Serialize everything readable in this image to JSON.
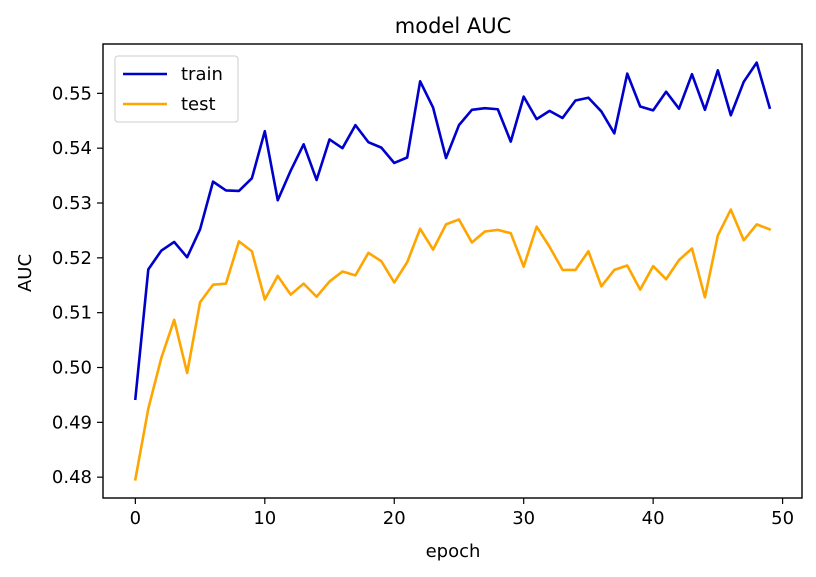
{
  "chart_data": {
    "type": "line",
    "title": "model AUC",
    "xlabel": "epoch",
    "ylabel": "AUC",
    "xlim": [
      -2.5,
      51.5
    ],
    "ylim": [
      0.4762,
      0.559
    ],
    "xticks": [
      0,
      10,
      20,
      30,
      40,
      50
    ],
    "yticks": [
      0.48,
      0.49,
      0.5,
      0.51,
      0.52,
      0.53,
      0.54,
      0.55
    ],
    "ytick_labels": [
      "0.48",
      "0.49",
      "0.50",
      "0.51",
      "0.52",
      "0.53",
      "0.54",
      "0.55"
    ],
    "grid": false,
    "legend_position": "upper-left",
    "x": [
      0,
      1,
      2,
      3,
      4,
      5,
      6,
      7,
      8,
      9,
      10,
      11,
      12,
      13,
      14,
      15,
      16,
      17,
      18,
      19,
      20,
      21,
      22,
      23,
      24,
      25,
      26,
      27,
      28,
      29,
      30,
      31,
      32,
      33,
      34,
      35,
      36,
      37,
      38,
      39,
      40,
      41,
      42,
      43,
      44,
      45,
      46,
      47,
      48,
      49
    ],
    "series": [
      {
        "name": "train",
        "color": "#0000cc",
        "values": [
          0.4943,
          0.5179,
          0.5213,
          0.5229,
          0.5201,
          0.5252,
          0.5339,
          0.5323,
          0.5322,
          0.5345,
          0.5431,
          0.5305,
          0.5359,
          0.5407,
          0.5342,
          0.5416,
          0.54,
          0.5442,
          0.5411,
          0.5401,
          0.5373,
          0.5383,
          0.5522,
          0.5474,
          0.5382,
          0.5442,
          0.547,
          0.5473,
          0.5471,
          0.5412,
          0.5494,
          0.5453,
          0.5468,
          0.5455,
          0.5487,
          0.5492,
          0.5467,
          0.5427,
          0.5536,
          0.5476,
          0.5469,
          0.5503,
          0.5472,
          0.5535,
          0.547,
          0.5542,
          0.546,
          0.5521,
          0.5556,
          0.5474
        ]
      },
      {
        "name": "test",
        "color": "#ffa500",
        "values": [
          0.4796,
          0.4925,
          0.5017,
          0.5087,
          0.499,
          0.5119,
          0.5151,
          0.5153,
          0.523,
          0.5212,
          0.5124,
          0.5167,
          0.5133,
          0.5153,
          0.5129,
          0.5157,
          0.5175,
          0.5168,
          0.5209,
          0.5194,
          0.5155,
          0.5192,
          0.5253,
          0.5215,
          0.5261,
          0.527,
          0.5228,
          0.5248,
          0.5251,
          0.5245,
          0.5184,
          0.5257,
          0.522,
          0.5178,
          0.5178,
          0.5212,
          0.5148,
          0.5178,
          0.5186,
          0.5142,
          0.5185,
          0.5161,
          0.5196,
          0.5217,
          0.5128,
          0.5241,
          0.5288,
          0.5232,
          0.5261,
          0.5252
        ]
      }
    ]
  }
}
